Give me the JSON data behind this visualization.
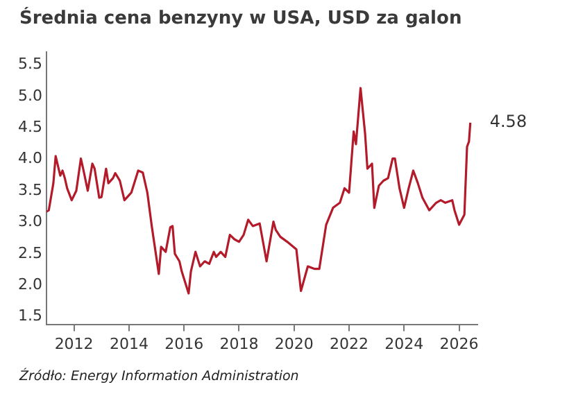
{
  "chart_data": {
    "type": "line",
    "title": "Średnia cena benzyny w USA, USD za galon",
    "x": [
      "2011-01",
      "2011-02",
      "2011-04",
      "2011-05",
      "2011-07",
      "2011-08",
      "2011-09",
      "2011-10",
      "2011-12",
      "2012-02",
      "2012-04",
      "2012-05",
      "2012-07",
      "2012-09",
      "2012-10",
      "2012-12",
      "2013-01",
      "2013-03",
      "2013-04",
      "2013-06",
      "2013-07",
      "2013-09",
      "2013-11",
      "2014-01",
      "2014-02",
      "2014-05",
      "2014-07",
      "2014-09",
      "2014-11",
      "2015-02",
      "2015-03",
      "2015-05",
      "2015-07",
      "2015-08",
      "2015-09",
      "2015-11",
      "2015-12",
      "2016-03",
      "2016-04",
      "2016-06",
      "2016-08",
      "2016-10",
      "2016-12",
      "2017-02",
      "2017-03",
      "2017-05",
      "2017-07",
      "2017-09",
      "2017-11",
      "2018-01",
      "2018-03",
      "2018-05",
      "2018-07",
      "2018-10",
      "2019-01",
      "2019-04",
      "2019-05",
      "2019-07",
      "2019-10",
      "2020-02",
      "2020-04",
      "2020-07",
      "2020-10",
      "2020-12",
      "2021-03",
      "2021-06",
      "2021-09",
      "2021-11",
      "2022-01",
      "2022-03",
      "2022-04",
      "2022-06",
      "2022-08",
      "2022-09",
      "2022-11",
      "2022-12",
      "2023-02",
      "2023-04",
      "2023-06",
      "2023-08",
      "2023-09",
      "2023-11",
      "2024-01",
      "2024-03",
      "2024-05",
      "2024-07",
      "2024-09",
      "2024-12",
      "2025-03",
      "2025-05",
      "2025-07",
      "2025-10",
      "2025-11",
      "2026-01",
      "2026-03-10",
      "2026-04-15",
      "2026-05-10",
      "2026-05-28"
    ],
    "series": [
      {
        "color": "#b31b2b",
        "values": [
          3.17,
          3.19,
          3.62,
          4.05,
          3.74,
          3.82,
          3.7,
          3.54,
          3.35,
          3.5,
          4.01,
          3.85,
          3.5,
          3.93,
          3.85,
          3.39,
          3.4,
          3.85,
          3.62,
          3.7,
          3.78,
          3.66,
          3.35,
          3.43,
          3.47,
          3.82,
          3.79,
          3.47,
          2.92,
          2.18,
          2.61,
          2.53,
          2.92,
          2.94,
          2.5,
          2.38,
          2.22,
          1.87,
          2.22,
          2.53,
          2.3,
          2.38,
          2.34,
          2.53,
          2.45,
          2.53,
          2.45,
          2.8,
          2.73,
          2.69,
          2.8,
          3.04,
          2.94,
          2.98,
          2.38,
          3.01,
          2.88,
          2.77,
          2.69,
          2.57,
          1.91,
          2.3,
          2.26,
          2.26,
          2.96,
          3.23,
          3.31,
          3.54,
          3.47,
          4.44,
          4.24,
          5.13,
          4.4,
          3.85,
          3.93,
          3.23,
          3.58,
          3.66,
          3.7,
          4.01,
          4.01,
          3.54,
          3.23,
          3.54,
          3.82,
          3.62,
          3.39,
          3.19,
          3.31,
          3.35,
          3.31,
          3.35,
          3.19,
          2.96,
          3.12,
          4.2,
          4.28,
          4.58
        ]
      }
    ],
    "xlim": [
      "2011-01",
      "2026-09"
    ],
    "xticks": [
      "2012",
      "2014",
      "2016",
      "2018",
      "2020",
      "2022",
      "2024",
      "2026"
    ],
    "ylim": [
      1.38,
      5.7
    ],
    "yticks": [
      {
        "value": 1.5,
        "label": "1.5"
      },
      {
        "value": 2,
        "label": "2.0"
      },
      {
        "value": 2.5,
        "label": "2.5"
      },
      {
        "value": 3,
        "label": "3.0"
      },
      {
        "value": 3.5,
        "label": "3.5"
      },
      {
        "value": 4,
        "label": "4.0"
      },
      {
        "value": 4.5,
        "label": "4.5"
      },
      {
        "value": 5,
        "label": "5.0"
      },
      {
        "value": 5.5,
        "label": "5.5"
      }
    ],
    "grid": false,
    "legend": false,
    "annotations": [
      {
        "text": "4.58",
        "x": "2026-05-28",
        "y": 4.58
      },
      "Źródło: Energy Information Administration"
    ]
  }
}
